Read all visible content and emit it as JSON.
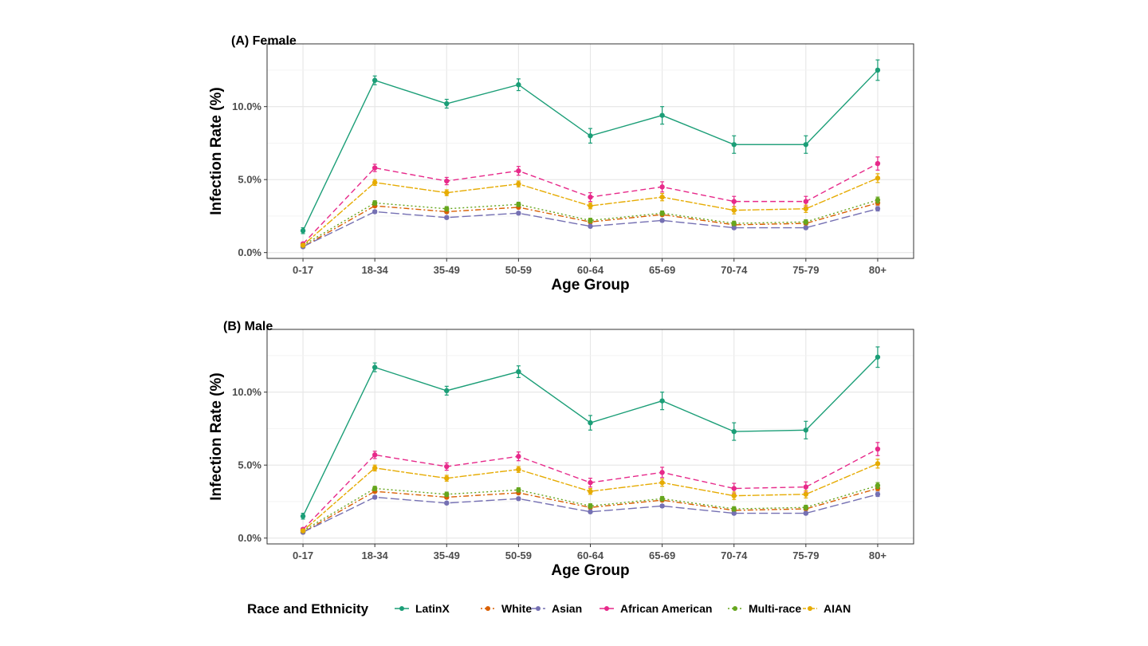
{
  "chart_data": [
    {
      "type": "line",
      "title": "(A) Female",
      "xlabel": "Age Group",
      "ylabel": "Infection Rate (%)",
      "categories": [
        "0-17",
        "18-34",
        "35-49",
        "50-59",
        "60-64",
        "65-69",
        "70-74",
        "75-79",
        "80+"
      ],
      "ylim": [
        -0.4,
        14.3
      ],
      "yticks": [
        0,
        5,
        10
      ],
      "ytick_labels": [
        "0.0%",
        "5.0%",
        "10.0%"
      ],
      "grid": true,
      "series": [
        {
          "name": "LatinX",
          "color": "#1b9e77",
          "dash": "solid",
          "values": [
            1.5,
            11.8,
            10.2,
            11.5,
            8.0,
            9.4,
            7.4,
            7.4,
            12.5
          ],
          "err": [
            0.2,
            0.3,
            0.3,
            0.4,
            0.5,
            0.6,
            0.6,
            0.6,
            0.7
          ]
        },
        {
          "name": "White",
          "color": "#d95f02",
          "dash": "dotdash",
          "values": [
            0.4,
            3.2,
            2.8,
            3.1,
            2.1,
            2.6,
            1.9,
            2.0,
            3.4
          ],
          "err": [
            0.05,
            0.1,
            0.1,
            0.1,
            0.1,
            0.1,
            0.1,
            0.1,
            0.15
          ]
        },
        {
          "name": "Asian",
          "color": "#7570b3",
          "dash": "longdash",
          "values": [
            0.4,
            2.8,
            2.4,
            2.7,
            1.8,
            2.2,
            1.7,
            1.7,
            3.0
          ],
          "err": [
            0.05,
            0.1,
            0.1,
            0.1,
            0.1,
            0.1,
            0.1,
            0.1,
            0.15
          ]
        },
        {
          "name": "African American",
          "color": "#e7298a",
          "dash": "dashed",
          "values": [
            0.6,
            5.8,
            4.9,
            5.6,
            3.8,
            4.5,
            3.5,
            3.5,
            6.1
          ],
          "err": [
            0.1,
            0.25,
            0.25,
            0.3,
            0.3,
            0.35,
            0.35,
            0.35,
            0.45
          ]
        },
        {
          "name": "Multi-race",
          "color": "#66a61e",
          "dash": "dotted",
          "values": [
            0.5,
            3.4,
            3.0,
            3.3,
            2.2,
            2.7,
            2.0,
            2.1,
            3.6
          ],
          "err": [
            0.05,
            0.15,
            0.15,
            0.15,
            0.15,
            0.15,
            0.15,
            0.15,
            0.2
          ]
        },
        {
          "name": "AIAN",
          "color": "#e6ab02",
          "dash": "twodash",
          "values": [
            0.5,
            4.8,
            4.1,
            4.7,
            3.2,
            3.8,
            2.9,
            3.0,
            5.1
          ],
          "err": [
            0.1,
            0.2,
            0.2,
            0.2,
            0.2,
            0.25,
            0.25,
            0.25,
            0.3
          ]
        }
      ]
    },
    {
      "type": "line",
      "title": "(B) Male",
      "xlabel": "Age Group",
      "ylabel": "Infection Rate (%)",
      "categories": [
        "0-17",
        "18-34",
        "35-49",
        "50-59",
        "60-64",
        "65-69",
        "70-74",
        "75-79",
        "80+"
      ],
      "ylim": [
        -0.4,
        14.3
      ],
      "yticks": [
        0,
        5,
        10
      ],
      "ytick_labels": [
        "0.0%",
        "5.0%",
        "10.0%"
      ],
      "grid": true,
      "series": [
        {
          "name": "LatinX",
          "color": "#1b9e77",
          "dash": "solid",
          "values": [
            1.5,
            11.7,
            10.1,
            11.4,
            7.9,
            9.4,
            7.3,
            7.4,
            12.4
          ],
          "err": [
            0.2,
            0.3,
            0.3,
            0.4,
            0.5,
            0.6,
            0.6,
            0.6,
            0.7
          ]
        },
        {
          "name": "White",
          "color": "#d95f02",
          "dash": "dotdash",
          "values": [
            0.4,
            3.2,
            2.8,
            3.1,
            2.1,
            2.6,
            1.9,
            2.0,
            3.4
          ],
          "err": [
            0.05,
            0.1,
            0.1,
            0.1,
            0.1,
            0.1,
            0.1,
            0.1,
            0.15
          ]
        },
        {
          "name": "Asian",
          "color": "#7570b3",
          "dash": "longdash",
          "values": [
            0.4,
            2.8,
            2.4,
            2.7,
            1.8,
            2.2,
            1.7,
            1.7,
            3.0
          ],
          "err": [
            0.05,
            0.1,
            0.1,
            0.1,
            0.1,
            0.1,
            0.1,
            0.1,
            0.15
          ]
        },
        {
          "name": "African American",
          "color": "#e7298a",
          "dash": "dashed",
          "values": [
            0.6,
            5.7,
            4.9,
            5.6,
            3.8,
            4.5,
            3.4,
            3.5,
            6.1
          ],
          "err": [
            0.1,
            0.25,
            0.25,
            0.3,
            0.3,
            0.35,
            0.35,
            0.35,
            0.45
          ]
        },
        {
          "name": "Multi-race",
          "color": "#66a61e",
          "dash": "dotted",
          "values": [
            0.5,
            3.4,
            3.0,
            3.3,
            2.2,
            2.7,
            2.0,
            2.1,
            3.6
          ],
          "err": [
            0.05,
            0.15,
            0.15,
            0.15,
            0.15,
            0.15,
            0.15,
            0.15,
            0.2
          ]
        },
        {
          "name": "AIAN",
          "color": "#e6ab02",
          "dash": "twodash",
          "values": [
            0.5,
            4.8,
            4.1,
            4.7,
            3.2,
            3.8,
            2.9,
            3.0,
            5.1
          ],
          "err": [
            0.1,
            0.2,
            0.2,
            0.2,
            0.2,
            0.25,
            0.25,
            0.25,
            0.3
          ]
        }
      ]
    }
  ],
  "legend": {
    "title": "Race and Ethnicity",
    "placement": "bottom",
    "items": [
      {
        "name": "LatinX",
        "color": "#1b9e77",
        "dash": "solid"
      },
      {
        "name": "White",
        "color": "#d95f02",
        "dash": "dotdash"
      },
      {
        "name": "Asian",
        "color": "#7570b3",
        "dash": "longdash"
      },
      {
        "name": "African American",
        "color": "#e7298a",
        "dash": "dashed"
      },
      {
        "name": "Multi-race",
        "color": "#66a61e",
        "dash": "dotted"
      },
      {
        "name": "AIAN",
        "color": "#e6ab02",
        "dash": "twodash"
      }
    ]
  }
}
